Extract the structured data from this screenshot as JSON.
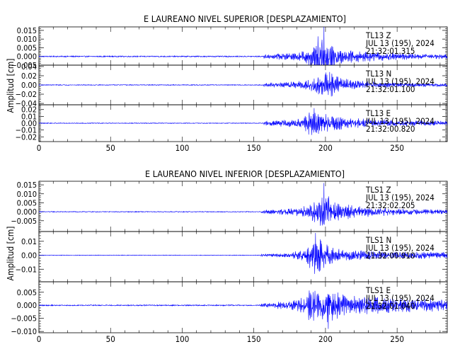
{
  "chart_data": [
    {
      "type": "line",
      "title": "E LAUREANO NIVEL SUPERIOR [DESPLAZAMIENTO]",
      "ylabel": "Amplitud  [cm]",
      "xlim": [
        0,
        285
      ],
      "xticks": [
        0,
        50,
        100,
        150,
        200,
        250
      ],
      "line_color": "#0000ff",
      "panels": [
        {
          "station": "TL13",
          "component": "Z",
          "date": "JUL  13 (195), 2024",
          "time": "21:32:01.315",
          "ylim": [
            -0.005,
            0.017
          ],
          "yticks": [
            -0.005,
            0.0,
            0.005,
            0.01,
            0.015
          ],
          "ytick_labels": [
            "−0.005",
            "0.000",
            "0.005",
            "0.010",
            "0.015"
          ],
          "signal": {
            "onset": 157,
            "peak_time": 199,
            "peak_amp": 0.017,
            "noise": 0.0003,
            "envelope": [
              [
                157,
                0.0012
              ],
              [
                175,
                0.002
              ],
              [
                185,
                0.003
              ],
              [
                192,
                0.006
              ],
              [
                196,
                0.012
              ],
              [
                200,
                0.008
              ],
              [
                210,
                0.004
              ],
              [
                230,
                0.0025
              ],
              [
                260,
                0.0015
              ],
              [
                285,
                0.0012
              ]
            ]
          }
        },
        {
          "station": "TL13",
          "component": "N",
          "date": "JUL  13 (195), 2024",
          "time": "21:32:01.100",
          "ylim": [
            -0.043,
            0.043
          ],
          "yticks": [
            -0.04,
            -0.02,
            0.0,
            0.02,
            0.04
          ],
          "ytick_labels": [
            "−0.04",
            "−0.02",
            "0.00",
            "0.02",
            "0.04"
          ],
          "signal": {
            "onset": 157,
            "peak_time": 203,
            "peak_amp": 0.028,
            "noise": 0.0008,
            "envelope": [
              [
                157,
                0.004
              ],
              [
                175,
                0.006
              ],
              [
                188,
                0.01
              ],
              [
                196,
                0.02
              ],
              [
                204,
                0.025
              ],
              [
                212,
                0.014
              ],
              [
                222,
                0.008
              ],
              [
                240,
                0.005
              ],
              [
                262,
                0.004
              ],
              [
                285,
                0.003
              ]
            ]
          }
        },
        {
          "station": "TL13",
          "component": "E",
          "date": "JUL  13 (195), 2024",
          "time": "21:32:00.820",
          "ylim": [
            -0.027,
            0.027
          ],
          "yticks": [
            -0.02,
            -0.01,
            0.0,
            0.01,
            0.02
          ],
          "ytick_labels": [
            "−0.02",
            "−0.01",
            "0.00",
            "0.01",
            "0.02"
          ],
          "signal": {
            "onset": 157,
            "peak_time": 192,
            "peak_amp": 0.022,
            "noise": 0.0005,
            "envelope": [
              [
                157,
                0.003
              ],
              [
                175,
                0.005
              ],
              [
                185,
                0.008
              ],
              [
                190,
                0.018
              ],
              [
                196,
                0.014
              ],
              [
                205,
                0.01
              ],
              [
                215,
                0.007
              ],
              [
                235,
                0.005
              ],
              [
                260,
                0.004
              ],
              [
                285,
                0.003
              ]
            ]
          }
        }
      ]
    },
    {
      "type": "line",
      "title": "E LAUREANO NIVEL INFERIOR [DESPLAZAMIENTO]",
      "ylabel": "Amplitud  [cm]",
      "xlim": [
        0,
        285
      ],
      "xticks": [
        0,
        50,
        100,
        150,
        200,
        250
      ],
      "line_color": "#0000ff",
      "panels": [
        {
          "station": "TLS1",
          "component": "Z",
          "date": "JUL  13 (195), 2024",
          "time": "21:32:02.205",
          "ylim": [
            -0.011,
            0.017
          ],
          "yticks": [
            -0.005,
            0.0,
            0.005,
            0.01,
            0.015
          ],
          "ytick_labels": [
            "−0.005",
            "0.000",
            "0.005",
            "0.010",
            "0.015"
          ],
          "signal": {
            "onset": 155,
            "peak_time": 199,
            "peak_amp": 0.016,
            "noise": 0.0002,
            "envelope": [
              [
                155,
                0.0008
              ],
              [
                175,
                0.0015
              ],
              [
                188,
                0.003
              ],
              [
                195,
                0.007
              ],
              [
                200,
                0.009
              ],
              [
                206,
                0.005
              ],
              [
                220,
                0.003
              ],
              [
                245,
                0.0018
              ],
              [
                285,
                0.001
              ]
            ]
          }
        },
        {
          "station": "TLS1",
          "component": "N",
          "date": "JUL  13 (195), 2024",
          "time": "21:32:00.910",
          "ylim": [
            -0.019,
            0.017
          ],
          "yticks": [
            -0.01,
            0.0,
            0.01
          ],
          "ytick_labels": [
            "−0.01",
            "0.00",
            "0.01"
          ],
          "signal": {
            "onset": 155,
            "peak_time": 193,
            "peak_amp": 0.016,
            "noise": 0.0002,
            "envelope": [
              [
                155,
                0.0008
              ],
              [
                175,
                0.0015
              ],
              [
                186,
                0.004
              ],
              [
                190,
                0.012
              ],
              [
                196,
                0.01
              ],
              [
                205,
                0.005
              ],
              [
                220,
                0.003
              ],
              [
                245,
                0.0025
              ],
              [
                285,
                0.002
              ]
            ]
          }
        },
        {
          "station": "TLS1",
          "component": "E",
          "date": "JUL  13 (195), 2024",
          "time": "21:32:01.040",
          "ylim": [
            -0.0105,
            0.009
          ],
          "yticks": [
            -0.01,
            -0.005,
            0.0,
            0.005
          ],
          "ytick_labels": [
            "−0.010",
            "−0.005",
            "0.000",
            "0.005"
          ],
          "signal": {
            "onset": 155,
            "peak_time": 202,
            "peak_amp": -0.009,
            "noise": 0.0002,
            "envelope": [
              [
                155,
                0.0007
              ],
              [
                175,
                0.0015
              ],
              [
                186,
                0.003
              ],
              [
                190,
                0.006
              ],
              [
                196,
                0.004
              ],
              [
                202,
                0.006
              ],
              [
                210,
                0.004
              ],
              [
                225,
                0.003
              ],
              [
                250,
                0.0025
              ],
              [
                285,
                0.002
              ]
            ]
          }
        }
      ]
    }
  ]
}
